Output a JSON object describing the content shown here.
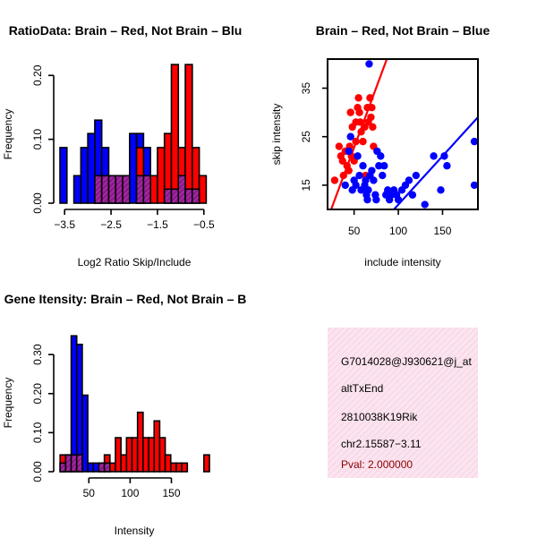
{
  "colors": {
    "red": "#ff0000",
    "blue": "#0000ff",
    "overlap": "#8b1a8b",
    "info_bg": "#f6d6e6",
    "pval": "#8b0000"
  },
  "chart_data": [
    {
      "type": "bar",
      "title": "RatioData: Brain – Red, Not Brain – Blu",
      "xlabel": "Log2 Ratio Skip/Include",
      "ylabel": "Frequency",
      "xlim": [
        -3.6,
        -0.4
      ],
      "ylim": [
        0,
        0.22
      ],
      "xticks": [
        -3.5,
        -2.5,
        -1.5,
        -0.5
      ],
      "xtick_labels": [
        "−3.5",
        "−2.5",
        "−1.5",
        "−0.5"
      ],
      "yticks": [
        0.0,
        0.1,
        0.2
      ],
      "ytick_labels": [
        "0.00",
        "0.10",
        "0.20"
      ],
      "bin_width": 0.15,
      "series": [
        {
          "name": "Not Brain",
          "color": "blue",
          "bins_start": [
            -3.6,
            -3.3,
            -3.15,
            -3.0,
            -2.85,
            -2.7,
            -2.55,
            -2.4,
            -2.25,
            -2.1,
            -1.95,
            -1.8
          ],
          "values": [
            0.087,
            0.043,
            0.087,
            0.109,
            0.13,
            0.087,
            0.043,
            0.043,
            0.043,
            0.109,
            0.109,
            0.087
          ]
        },
        {
          "name": "Brain",
          "color": "red",
          "bins_start": [
            -1.95,
            -1.65,
            -1.5,
            -1.35,
            -1.2,
            -1.05,
            -0.9,
            -0.75,
            -0.6
          ],
          "values": [
            0.087,
            0.043,
            0.087,
            0.109,
            0.217,
            0.087,
            0.217,
            0.087,
            0.043
          ]
        },
        {
          "name": "Overlap",
          "color": "overlap",
          "bins_start": [
            -2.85,
            -2.7,
            -2.55,
            -2.4,
            -2.25,
            -1.95,
            -1.8,
            -1.35,
            -1.2,
            -1.05,
            -0.9,
            -0.75
          ],
          "values": [
            0.043,
            0.043,
            0.043,
            0.043,
            0.043,
            0.043,
            0.043,
            0.022,
            0.022,
            0.043,
            0.022,
            0.022
          ]
        }
      ]
    },
    {
      "type": "scatter",
      "title": "Brain – Red, Not Brain – Blue",
      "xlabel": "include intensity",
      "ylabel": "skip intensity",
      "xlim": [
        20,
        190
      ],
      "ylim": [
        10,
        41
      ],
      "xticks": [
        50,
        100,
        150
      ],
      "yticks": [
        15,
        25,
        35
      ],
      "series": [
        {
          "name": "Brain",
          "color": "red",
          "points": [
            [
              28,
              16
            ],
            [
              33,
              23
            ],
            [
              35,
              21
            ],
            [
              37,
              20
            ],
            [
              38,
              17
            ],
            [
              40,
              22
            ],
            [
              42,
              19
            ],
            [
              44,
              18
            ],
            [
              45,
              23
            ],
            [
              47,
              21
            ],
            [
              48,
              27
            ],
            [
              50,
              20
            ],
            [
              52,
              24
            ],
            [
              54,
              31
            ],
            [
              55,
              33
            ],
            [
              56,
              30
            ],
            [
              57,
              28
            ],
            [
              58,
              26
            ],
            [
              60,
              24
            ],
            [
              62,
              27
            ],
            [
              65,
              31
            ],
            [
              66,
              28
            ],
            [
              68,
              33
            ],
            [
              69,
              29
            ],
            [
              70,
              31
            ],
            [
              71,
              27
            ],
            [
              72,
              23
            ],
            [
              52,
              28
            ],
            [
              46,
              30
            ],
            [
              63,
              17
            ]
          ],
          "fit": [
            [
              20,
              8
            ],
            [
              87,
              41
            ]
          ]
        },
        {
          "name": "Not Brain",
          "color": "blue",
          "points": [
            [
              40,
              15
            ],
            [
              44,
              22
            ],
            [
              46,
              25
            ],
            [
              48,
              14
            ],
            [
              50,
              16
            ],
            [
              52,
              15
            ],
            [
              54,
              21
            ],
            [
              56,
              17
            ],
            [
              58,
              14
            ],
            [
              60,
              19
            ],
            [
              62,
              15
            ],
            [
              63,
              16
            ],
            [
              64,
              13
            ],
            [
              65,
              12
            ],
            [
              66,
              14
            ],
            [
              67,
              40
            ],
            [
              68,
              17
            ],
            [
              70,
              18
            ],
            [
              72,
              16
            ],
            [
              74,
              13
            ],
            [
              76,
              22
            ],
            [
              78,
              19
            ],
            [
              80,
              21
            ],
            [
              82,
              17
            ],
            [
              84,
              19
            ],
            [
              86,
              13
            ],
            [
              88,
              14
            ],
            [
              90,
              12
            ],
            [
              92,
              13
            ],
            [
              95,
              14
            ],
            [
              98,
              13
            ],
            [
              100,
              12
            ],
            [
              104,
              14
            ],
            [
              108,
              15
            ],
            [
              112,
              16
            ],
            [
              116,
              13
            ],
            [
              120,
              17
            ],
            [
              130,
              11
            ],
            [
              140,
              21
            ],
            [
              148,
              14
            ],
            [
              152,
              21
            ],
            [
              155,
              19
            ],
            [
              186,
              24
            ],
            [
              186,
              15
            ],
            [
              75,
              12
            ]
          ],
          "fit": [
            [
              95,
              10
            ],
            [
              190,
              29
            ]
          ]
        }
      ]
    },
    {
      "type": "bar",
      "title": "Gene Itensity: Brain – Red, Not Brain – B",
      "xlabel": "Intensity",
      "ylabel": "Frequency",
      "xlim": [
        15,
        195
      ],
      "ylim": [
        0,
        0.36
      ],
      "xticks": [
        50,
        100,
        150
      ],
      "yticks": [
        0.0,
        0.1,
        0.2,
        0.3
      ],
      "ytick_labels": [
        "0.00",
        "0.10",
        "0.20",
        "0.30"
      ],
      "bin_width": 6.7,
      "series": [
        {
          "name": "Not Brain",
          "color": "blue",
          "bins_start": [
            15.2,
            21.9,
            28.6,
            35.3,
            42.0,
            48.7,
            55.4,
            62.1
          ],
          "values": [
            0.022,
            0.043,
            0.348,
            0.326,
            0.196,
            0.022,
            0.022,
            0.022
          ]
        },
        {
          "name": "Brain",
          "color": "red",
          "bins_start": [
            15.2,
            68.8,
            75.5,
            82.2,
            88.9,
            95.6,
            102.3,
            109.0,
            115.7,
            122.4,
            129.1,
            135.8,
            142.5,
            149.2,
            155.9,
            162.6,
            189.4
          ],
          "values": [
            0.043,
            0.043,
            0.022,
            0.087,
            0.043,
            0.087,
            0.087,
            0.152,
            0.087,
            0.087,
            0.13,
            0.087,
            0.043,
            0.022,
            0.022,
            0.022,
            0.043
          ]
        },
        {
          "name": "Overlap",
          "color": "overlap",
          "bins_start": [
            15.2,
            21.9,
            28.6,
            35.3,
            62.1,
            68.8
          ],
          "values": [
            0.022,
            0.043,
            0.043,
            0.043,
            0.022,
            0.022
          ]
        }
      ]
    }
  ],
  "info_box": {
    "id_line": "G7014028@J930621@j_at",
    "event_type": "altTxEnd",
    "gene_name": "2810038K19Rik",
    "locus": "chr2.15587−3.11",
    "pval": "Pval: 2.000000"
  }
}
